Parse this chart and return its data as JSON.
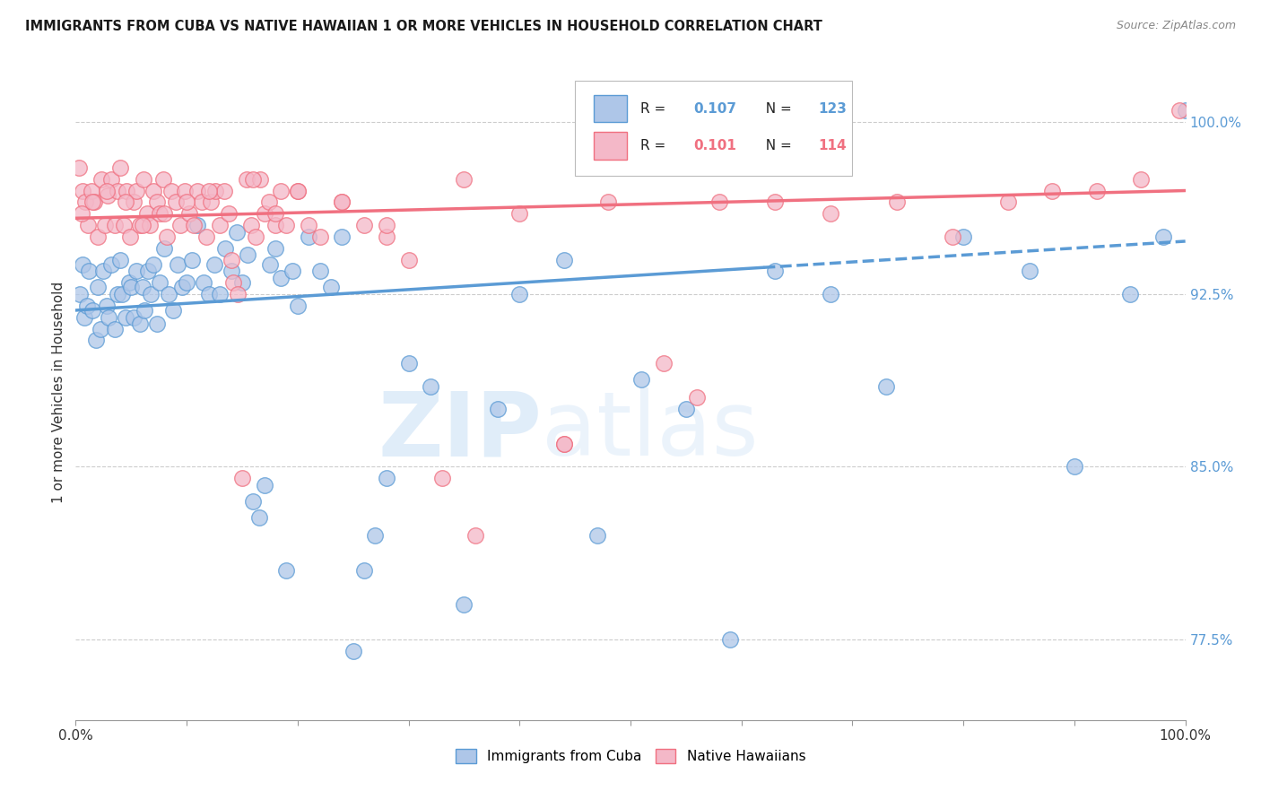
{
  "title": "IMMIGRANTS FROM CUBA VS NATIVE HAWAIIAN 1 OR MORE VEHICLES IN HOUSEHOLD CORRELATION CHART",
  "source": "Source: ZipAtlas.com",
  "ylabel": "1 or more Vehicles in Household",
  "yticks": [
    77.5,
    85.0,
    92.5,
    100.0
  ],
  "ytick_labels": [
    "77.5%",
    "85.0%",
    "92.5%",
    "100.0%"
  ],
  "r_blue": 0.107,
  "n_blue": 123,
  "r_pink": 0.101,
  "n_pink": 114,
  "blue_color": "#5b9bd5",
  "pink_color": "#f07080",
  "scatter_blue_color": "#aec6e8",
  "scatter_pink_color": "#f4b8c8",
  "watermark_zip": "ZIP",
  "watermark_atlas": "atlas",
  "xmin": 0.0,
  "xmax": 100.0,
  "ymin": 74.0,
  "ymax": 102.5,
  "blue_trend_start_y": 91.8,
  "blue_trend_end_y": 94.8,
  "pink_trend_start_y": 95.8,
  "pink_trend_end_y": 97.0,
  "blue_dash_cutoff": 62.0,
  "blue_x": [
    0.4,
    0.6,
    0.8,
    1.0,
    1.2,
    1.5,
    1.8,
    2.0,
    2.2,
    2.5,
    2.8,
    3.0,
    3.2,
    3.5,
    3.8,
    4.0,
    4.2,
    4.5,
    4.8,
    5.0,
    5.2,
    5.5,
    5.8,
    6.0,
    6.2,
    6.5,
    6.8,
    7.0,
    7.3,
    7.6,
    8.0,
    8.4,
    8.8,
    9.2,
    9.6,
    10.0,
    10.5,
    11.0,
    11.5,
    12.0,
    12.5,
    13.0,
    13.5,
    14.0,
    14.5,
    15.0,
    15.5,
    16.0,
    16.5,
    17.0,
    17.5,
    18.0,
    18.5,
    19.0,
    19.5,
    20.0,
    21.0,
    22.0,
    23.0,
    24.0,
    25.0,
    26.0,
    27.0,
    28.0,
    30.0,
    32.0,
    35.0,
    38.0,
    40.0,
    44.0,
    47.0,
    51.0,
    55.0,
    59.0,
    63.0,
    68.0,
    73.0,
    80.0,
    86.0,
    90.0,
    95.0,
    98.0,
    100.0
  ],
  "blue_y": [
    92.5,
    93.8,
    91.5,
    92.0,
    93.5,
    91.8,
    90.5,
    92.8,
    91.0,
    93.5,
    92.0,
    91.5,
    93.8,
    91.0,
    92.5,
    94.0,
    92.5,
    91.5,
    93.0,
    92.8,
    91.5,
    93.5,
    91.2,
    92.8,
    91.8,
    93.5,
    92.5,
    93.8,
    91.2,
    93.0,
    94.5,
    92.5,
    91.8,
    93.8,
    92.8,
    93.0,
    94.0,
    95.5,
    93.0,
    92.5,
    93.8,
    92.5,
    94.5,
    93.5,
    95.2,
    93.0,
    94.2,
    83.5,
    82.8,
    84.2,
    93.8,
    94.5,
    93.2,
    80.5,
    93.5,
    92.0,
    95.0,
    93.5,
    92.8,
    95.0,
    77.0,
    80.5,
    82.0,
    84.5,
    89.5,
    88.5,
    79.0,
    87.5,
    92.5,
    94.0,
    82.0,
    88.8,
    87.5,
    77.5,
    93.5,
    92.5,
    88.5,
    95.0,
    93.5,
    85.0,
    92.5,
    95.0,
    100.5
  ],
  "pink_x": [
    0.3,
    0.6,
    0.9,
    1.1,
    1.4,
    1.7,
    2.0,
    2.3,
    2.6,
    2.9,
    3.2,
    3.5,
    3.8,
    4.0,
    4.3,
    4.6,
    4.9,
    5.2,
    5.5,
    5.8,
    6.1,
    6.4,
    6.7,
    7.0,
    7.3,
    7.6,
    7.9,
    8.2,
    8.6,
    9.0,
    9.4,
    9.8,
    10.2,
    10.6,
    11.0,
    11.4,
    11.8,
    12.2,
    12.6,
    13.0,
    13.4,
    13.8,
    14.2,
    14.6,
    15.0,
    15.4,
    15.8,
    16.2,
    16.6,
    17.0,
    17.4,
    18.0,
    18.5,
    19.0,
    20.0,
    21.0,
    22.0,
    24.0,
    26.0,
    28.0,
    30.0,
    33.0,
    36.0,
    40.0,
    44.0,
    48.0,
    53.0,
    58.0,
    63.0,
    68.0,
    74.0,
    79.0,
    84.0,
    88.0,
    92.0,
    96.0,
    99.5,
    0.5,
    1.5,
    2.8,
    4.5,
    6.0,
    8.0,
    10.0,
    12.0,
    14.0,
    16.0,
    18.0,
    20.0,
    24.0,
    28.0,
    35.0,
    44.0,
    56.0
  ],
  "pink_y": [
    98.0,
    97.0,
    96.5,
    95.5,
    97.0,
    96.5,
    95.0,
    97.5,
    95.5,
    96.8,
    97.5,
    95.5,
    97.0,
    98.0,
    95.5,
    97.0,
    95.0,
    96.5,
    97.0,
    95.5,
    97.5,
    96.0,
    95.5,
    97.0,
    96.5,
    96.0,
    97.5,
    95.0,
    97.0,
    96.5,
    95.5,
    97.0,
    96.0,
    95.5,
    97.0,
    96.5,
    95.0,
    96.5,
    97.0,
    95.5,
    97.0,
    96.0,
    93.0,
    92.5,
    84.5,
    97.5,
    95.5,
    95.0,
    97.5,
    96.0,
    96.5,
    95.5,
    97.0,
    95.5,
    97.0,
    95.5,
    95.0,
    96.5,
    95.5,
    95.0,
    94.0,
    84.5,
    82.0,
    96.0,
    86.0,
    96.5,
    89.5,
    96.5,
    96.5,
    96.0,
    96.5,
    95.0,
    96.5,
    97.0,
    97.0,
    97.5,
    100.5,
    96.0,
    96.5,
    97.0,
    96.5,
    95.5,
    96.0,
    96.5,
    97.0,
    94.0,
    97.5,
    96.0,
    97.0,
    96.5,
    95.5,
    97.5,
    86.0,
    88.0
  ]
}
